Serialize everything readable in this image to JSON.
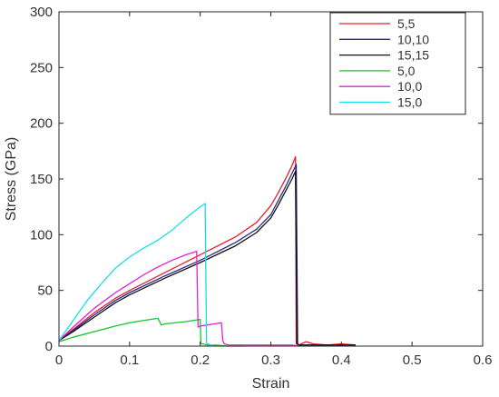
{
  "chart_data": {
    "type": "line",
    "title": "",
    "xlabel": "Strain",
    "ylabel": "Stress (GPa)",
    "xlim": [
      0,
      0.6
    ],
    "ylim": [
      0,
      300
    ],
    "xticks": [
      0,
      0.1,
      0.2,
      0.3,
      0.4,
      0.5,
      0.6
    ],
    "xtick_labels": [
      "0",
      "0.1",
      "0.2",
      "0.3",
      "0.4",
      "0.5",
      "0.6"
    ],
    "yticks": [
      0,
      50,
      100,
      150,
      200,
      250,
      300
    ],
    "ytick_labels": [
      "0",
      "50",
      "100",
      "150",
      "200",
      "250",
      "300"
    ],
    "grid": false,
    "legend_position": "top-right",
    "series": [
      {
        "name": "5,5",
        "color": "#e8202a",
        "x": [
          0,
          0.02,
          0.05,
          0.08,
          0.1,
          0.15,
          0.2,
          0.25,
          0.28,
          0.3,
          0.31,
          0.32,
          0.33,
          0.335,
          0.336,
          0.34,
          0.35,
          0.36,
          0.38,
          0.4,
          0.42
        ],
        "y": [
          5,
          15,
          30,
          43,
          50,
          66,
          82,
          98,
          111,
          126,
          137,
          149,
          162,
          170,
          2,
          1,
          4,
          2,
          1,
          2,
          1
        ]
      },
      {
        "name": "10,10",
        "color": "#2a2c8c",
        "x": [
          0,
          0.02,
          0.05,
          0.08,
          0.1,
          0.15,
          0.2,
          0.25,
          0.28,
          0.3,
          0.31,
          0.32,
          0.33,
          0.336,
          0.338,
          0.34,
          0.35,
          0.38,
          0.4,
          0.42
        ],
        "y": [
          5,
          14,
          28,
          41,
          48,
          63,
          77,
          93,
          105,
          118,
          130,
          142,
          155,
          163,
          2,
          1,
          1,
          1,
          1,
          1
        ]
      },
      {
        "name": "15,15",
        "color": "#111111",
        "x": [
          0,
          0.02,
          0.05,
          0.08,
          0.1,
          0.15,
          0.2,
          0.25,
          0.28,
          0.3,
          0.31,
          0.32,
          0.33,
          0.335,
          0.337,
          0.34,
          0.35,
          0.38,
          0.4,
          0.42
        ],
        "y": [
          5,
          13,
          26,
          39,
          46,
          61,
          75,
          90,
          102,
          115,
          126,
          138,
          150,
          157,
          2,
          1,
          1,
          1,
          1,
          1
        ]
      },
      {
        "name": "5,0",
        "color": "#19c42c",
        "x": [
          0,
          0.02,
          0.05,
          0.08,
          0.1,
          0.12,
          0.14,
          0.145,
          0.15,
          0.18,
          0.2,
          0.201,
          0.203,
          0.21,
          0.22,
          0.24,
          0.26
        ],
        "y": [
          4,
          8,
          13,
          18,
          21,
          23,
          25,
          19,
          20,
          22,
          24,
          2,
          2,
          1,
          1,
          0,
          0
        ]
      },
      {
        "name": "10,0",
        "color": "#e81ed8",
        "x": [
          0,
          0.02,
          0.05,
          0.08,
          0.1,
          0.12,
          0.14,
          0.16,
          0.18,
          0.195,
          0.197,
          0.2,
          0.21,
          0.22,
          0.23,
          0.232,
          0.234,
          0.24,
          0.26,
          0.3,
          0.33,
          0.34
        ],
        "y": [
          5,
          17,
          34,
          48,
          56,
          64,
          71,
          77,
          82,
          85,
          17,
          18,
          19,
          20,
          21,
          5,
          2,
          1,
          1,
          1,
          1,
          0
        ]
      },
      {
        "name": "15,0",
        "color": "#19dcea",
        "x": [
          0,
          0.02,
          0.04,
          0.06,
          0.08,
          0.1,
          0.12,
          0.14,
          0.16,
          0.18,
          0.2,
          0.207,
          0.209,
          0.21,
          0.215,
          0.22
        ],
        "y": [
          5,
          23,
          41,
          56,
          70,
          80,
          88,
          95,
          104,
          115,
          125,
          128,
          3,
          2,
          1,
          1
        ]
      }
    ]
  }
}
